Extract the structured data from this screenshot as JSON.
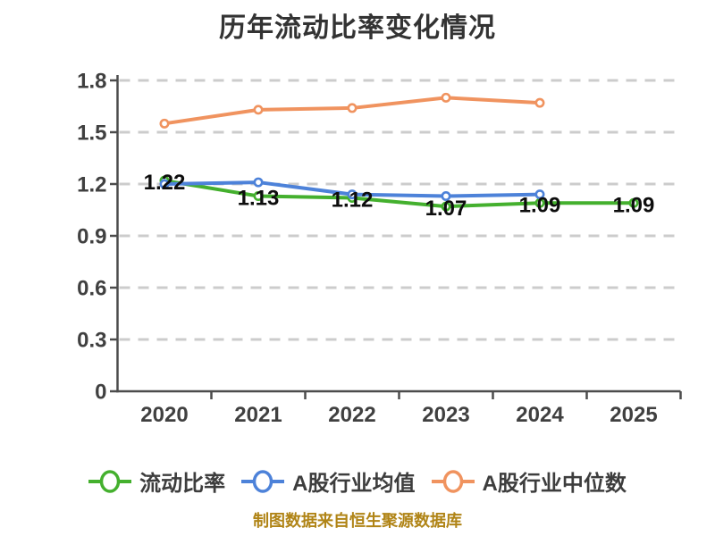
{
  "chart_data": {
    "type": "line",
    "title": "历年流动比率变化情况",
    "caption": "制图数据来自恒生聚源数据库",
    "x_categories": [
      "2020",
      "2021",
      "2022",
      "2023",
      "2024",
      "2025"
    ],
    "ylim": [
      0,
      1.8
    ],
    "yticks": [
      0,
      0.3,
      0.6,
      0.9,
      1.2,
      1.5,
      1.8
    ],
    "grid": "horizontal-dashed",
    "legend_position": "bottom",
    "series": [
      {
        "key": "current-ratio",
        "name": "流动比率",
        "color": "#44b02e",
        "values": [
          1.22,
          1.13,
          1.12,
          1.07,
          1.09,
          1.09
        ],
        "data_labels": true
      },
      {
        "key": "a-share-industry-mean",
        "name": "A股行业均值",
        "color": "#4d82d9",
        "values": [
          1.2,
          1.21,
          1.14,
          1.13,
          1.14
        ],
        "data_labels": false
      },
      {
        "key": "a-share-industry-median",
        "name": "A股行业中位数",
        "color": "#f0935f",
        "values": [
          1.55,
          1.63,
          1.64,
          1.7,
          1.67
        ],
        "data_labels": false
      }
    ],
    "style": {
      "background": "#ffffff",
      "axis_color": "#4c4c4c",
      "grid_color": "#cccccc",
      "tick_label_color": "#404040",
      "data_label_color": "#0d0d0d",
      "title_color": "#333333",
      "legend_text_color": "#3d3d3d",
      "caption_color": "#b08416",
      "marker": "white-filled-circle"
    }
  }
}
